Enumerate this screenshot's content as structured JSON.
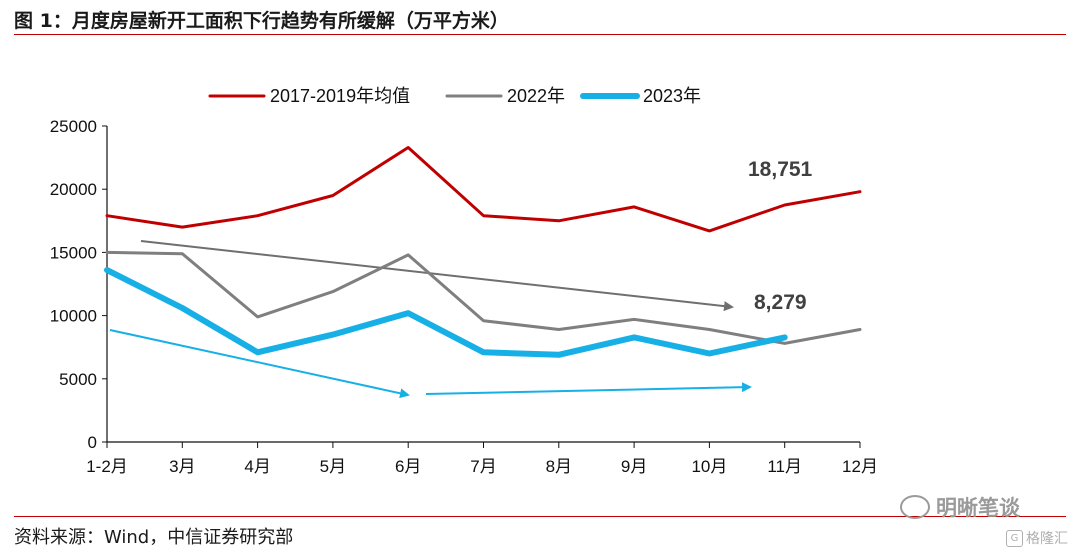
{
  "title": "图 1：月度房屋新开工面积下行趋势有所缓解（万平方米）",
  "source": "资料来源：Wind，中信证券研究部",
  "watermark": "明晰笔谈",
  "logo_text": "格隆汇",
  "chart_data": {
    "type": "line",
    "categories": [
      "1-2月",
      "3月",
      "4月",
      "5月",
      "6月",
      "7月",
      "8月",
      "9月",
      "10月",
      "11月",
      "12月"
    ],
    "ylim": [
      0,
      25000
    ],
    "yticks": [
      0,
      5000,
      10000,
      15000,
      20000,
      25000
    ],
    "grid": false,
    "legend_position": "top",
    "series": [
      {
        "name": "2017-2019年均值",
        "color": "#c00000",
        "width": 3,
        "values": [
          17900,
          17000,
          17900,
          19500,
          23300,
          17900,
          17500,
          18600,
          16700,
          18751,
          19800
        ]
      },
      {
        "name": "2022年",
        "color": "#7f7f7f",
        "width": 3,
        "values": [
          15000,
          14900,
          9900,
          11900,
          14800,
          9600,
          8900,
          9700,
          8900,
          7800,
          8900
        ]
      },
      {
        "name": "2023年",
        "color": "#16b0e6",
        "width": 6,
        "values": [
          13600,
          10600,
          7100,
          8500,
          10200,
          7100,
          6900,
          8279,
          7000,
          8279,
          null
        ]
      }
    ],
    "annotations": [
      {
        "label": "18,751",
        "color": "#404040"
      },
      {
        "label": "8,279",
        "color": "#404040"
      }
    ]
  }
}
